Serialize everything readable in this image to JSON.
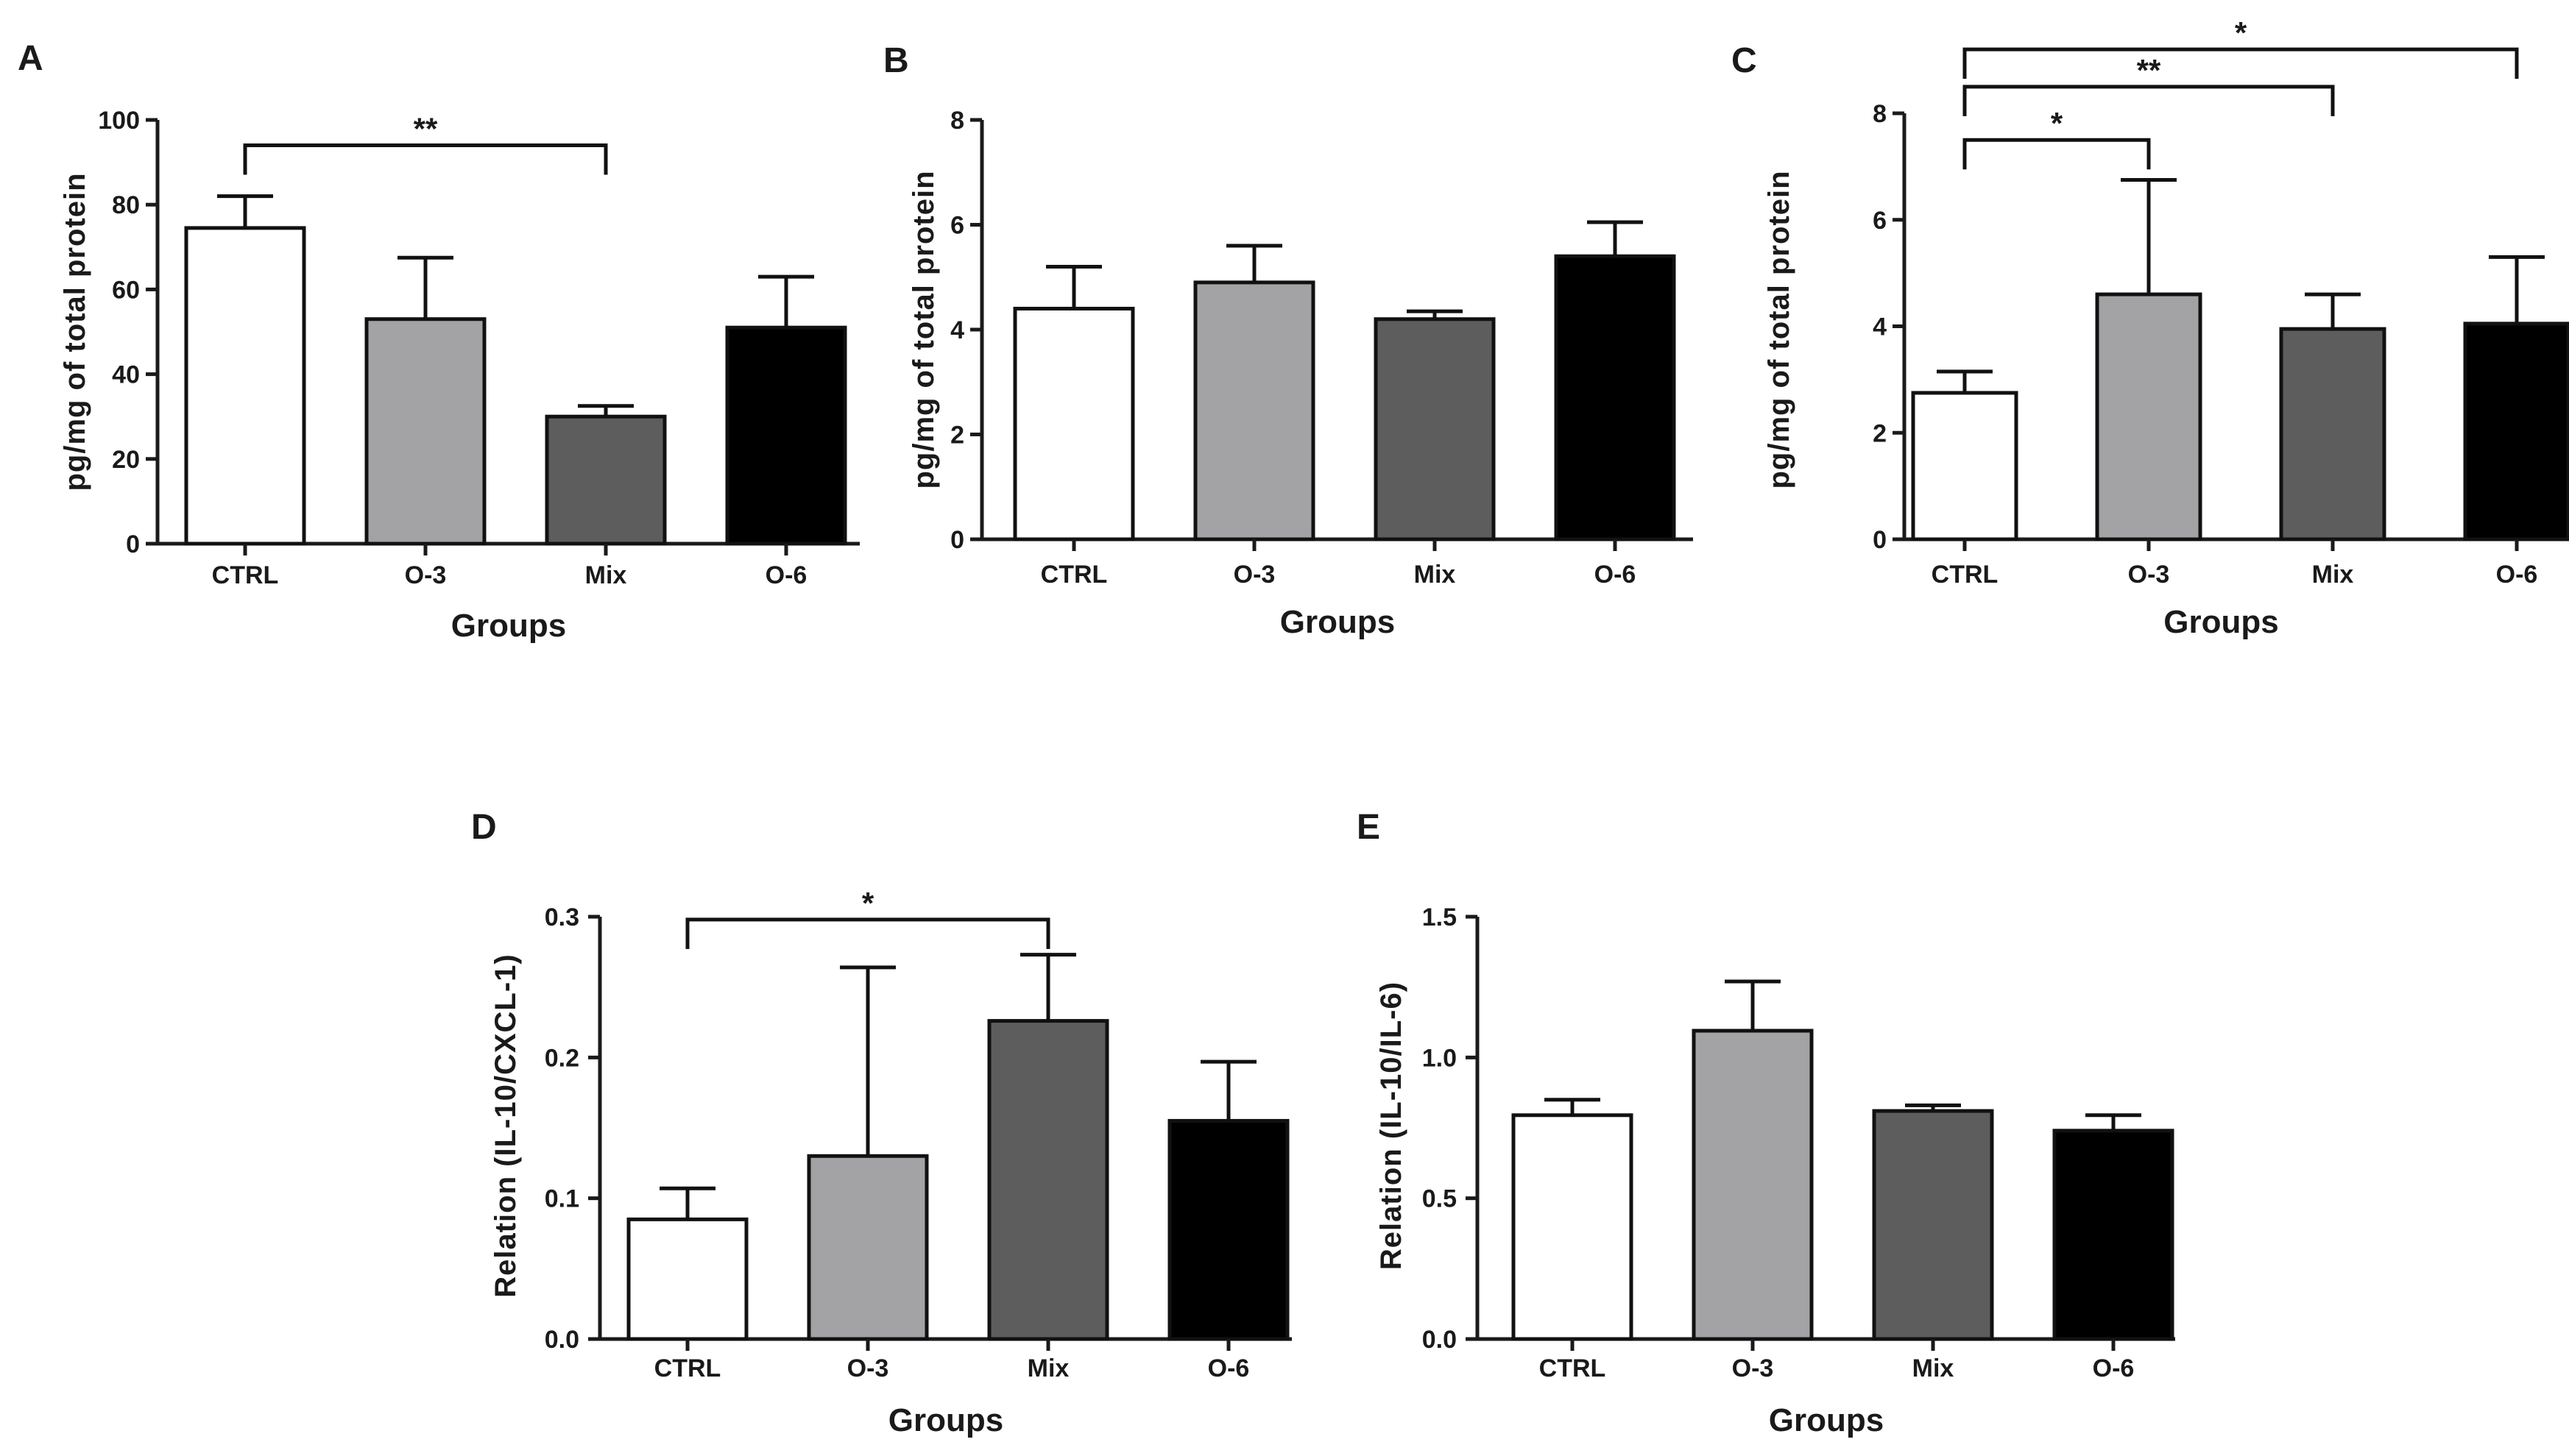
{
  "colors": {
    "CTRL": "#ffffff",
    "O-3": "#a3a3a6",
    "Mix": "#5d5d5d",
    "O-6": "#000000",
    "axis": "#1a1a1a"
  },
  "chart_data": [
    {
      "panel": "A",
      "type": "bar",
      "categories": [
        "CTRL",
        "O-3",
        "Mix",
        "O-6"
      ],
      "values": [
        74.5,
        53,
        30,
        51
      ],
      "errors": [
        7.5,
        14.5,
        2.5,
        12
      ],
      "ylabel": "pg/mg of total protein",
      "xlabel": "Groups",
      "ylim": [
        0,
        100
      ],
      "yticks": [
        "0",
        "20",
        "40",
        "60",
        "80",
        "100"
      ],
      "significance": [
        {
          "from": "CTRL",
          "to": "Mix",
          "label": "**",
          "y": 94
        }
      ]
    },
    {
      "panel": "B",
      "type": "bar",
      "categories": [
        "CTRL",
        "O-3",
        "Mix",
        "O-6"
      ],
      "values": [
        4.4,
        4.9,
        4.2,
        5.4
      ],
      "errors": [
        0.8,
        0.7,
        0.15,
        0.65
      ],
      "ylabel": "pg/mg of total protein",
      "xlabel": "Groups",
      "ylim": [
        0,
        8
      ],
      "yticks": [
        "0",
        "2",
        "4",
        "6",
        "8"
      ],
      "significance": []
    },
    {
      "panel": "C",
      "type": "bar",
      "categories": [
        "CTRL",
        "O-3",
        "Mix",
        "O-6"
      ],
      "values": [
        2.75,
        4.6,
        3.95,
        4.05
      ],
      "errors": [
        0.4,
        2.15,
        0.65,
        1.25
      ],
      "ylabel": "pg/mg of total protein",
      "xlabel": "Groups",
      "ylim": [
        0,
        8
      ],
      "yticks": [
        "0",
        "2",
        "4",
        "6",
        "8"
      ],
      "significance": [
        {
          "from": "CTRL",
          "to": "O-3",
          "label": "*",
          "y": 7.5
        },
        {
          "from": "CTRL",
          "to": "Mix",
          "label": "**",
          "y": 8.5
        },
        {
          "from": "CTRL",
          "to": "O-6",
          "label": "*",
          "y": 9.2
        }
      ]
    },
    {
      "panel": "D",
      "type": "bar",
      "categories": [
        "CTRL",
        "O-3",
        "Mix",
        "O-6"
      ],
      "values": [
        0.085,
        0.13,
        0.226,
        0.155
      ],
      "errors": [
        0.022,
        0.134,
        0.047,
        0.042
      ],
      "ylabel": "Relation (IL-10/CXCL-1)",
      "xlabel": "Groups",
      "ylim": [
        0,
        0.3
      ],
      "yticks": [
        "0.0",
        "0.1",
        "0.2",
        "0.3"
      ],
      "significance": [
        {
          "from": "CTRL",
          "to": "Mix",
          "label": "*",
          "y": 0.298
        }
      ]
    },
    {
      "panel": "E",
      "type": "bar",
      "categories": [
        "CTRL",
        "O-3",
        "Mix",
        "O-6"
      ],
      "values": [
        0.795,
        1.095,
        0.81,
        0.74
      ],
      "errors": [
        0.055,
        0.175,
        0.02,
        0.055
      ],
      "ylabel": "Relation (IL-10/IL-6)",
      "xlabel": "Groups",
      "ylim": [
        0,
        1.5
      ],
      "yticks": [
        "0.0",
        "0.5",
        "1.0",
        "1.5"
      ],
      "significance": []
    }
  ]
}
